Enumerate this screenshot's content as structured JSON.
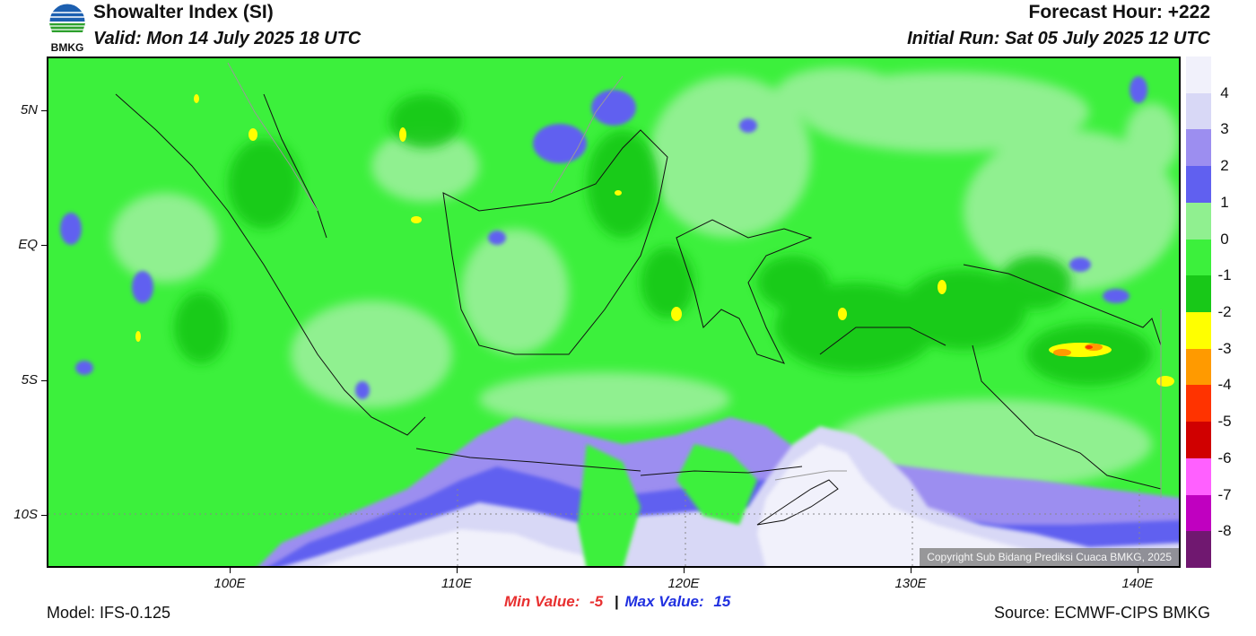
{
  "header": {
    "title": "Showalter Index (SI)",
    "valid": "Valid: Mon 14 July 2025 18 UTC",
    "forecast_hour": "Forecast Hour: +222",
    "initial_run": "Initial Run: Sat 05 July 2025 12 UTC",
    "logo_text": "BMKG"
  },
  "axes": {
    "lat_labels": [
      "5N",
      "EQ",
      "5S",
      "10S"
    ],
    "lon_labels": [
      "100E",
      "110E",
      "120E",
      "130E",
      "140E"
    ]
  },
  "stats": {
    "min_label": "Min Value:",
    "min_value": "-5",
    "separator": "|",
    "max_label": "Max Value:",
    "max_value": "15"
  },
  "footer": {
    "model": "Model: IFS-0.125",
    "source": "Source: ECMWF-CIPS BMKG",
    "copyright": "Copyright Sub Bidang Prediksi Cuaca BMKG, 2025"
  },
  "colorbar": {
    "labels": [
      "4",
      "3",
      "2",
      "1",
      "0",
      "-1",
      "-2",
      "-3",
      "-4",
      "-5",
      "-6",
      "-7",
      "-8"
    ],
    "colors": [
      "#f1f1fb",
      "#d8d8f6",
      "#9c8ef0",
      "#6060f0",
      "#90f090",
      "#3cf03c",
      "#18c818",
      "#ffff00",
      "#ff9a00",
      "#ff3300",
      "#d00000",
      "#ff60ff",
      "#c000c0",
      "#701870"
    ]
  },
  "colors": {
    "base_green": "#3cf03c",
    "light_green": "#90f090",
    "dark_green": "#18c818",
    "purple": "#9c8ef0",
    "blue": "#6060f0",
    "pale": "#f1f1fb",
    "min_color": "#e83030",
    "max_color": "#2030e0"
  }
}
